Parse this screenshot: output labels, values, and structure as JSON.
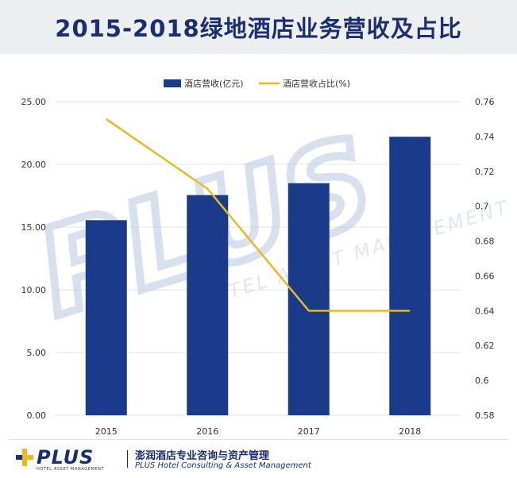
{
  "header": {
    "title": "2015-2018绿地酒店业务营收及占比"
  },
  "chart_data": {
    "type": "bar",
    "categories": [
      "2015",
      "2016",
      "2017",
      "2018"
    ],
    "series": [
      {
        "name": "酒店营收(亿元)",
        "type": "bar",
        "axis": "left",
        "color": "#1a3a8a",
        "values": [
          15.55,
          17.55,
          18.5,
          22.2
        ]
      },
      {
        "name": "酒店营收占比(%)",
        "type": "line",
        "axis": "right",
        "color": "#e8b923",
        "values": [
          0.75,
          0.71,
          0.64,
          0.64
        ]
      }
    ],
    "y_left": {
      "min": 0,
      "max": 25,
      "ticks": [
        "0.00",
        "5.00",
        "10.00",
        "15.00",
        "20.00",
        "25.00"
      ]
    },
    "y_right": {
      "min": 0.58,
      "max": 0.76,
      "ticks": [
        "0.58",
        "0.6",
        "0.62",
        "0.64",
        "0.66",
        "0.68",
        "0.7",
        "0.72",
        "0.74",
        "0.76"
      ]
    },
    "grid": true,
    "legend_position": "top-center"
  },
  "watermark": {
    "text": "PLUS",
    "subtext": "HOTEL ASSET MANAGEMENT"
  },
  "footer": {
    "brand": "PLUS",
    "brand_sub": "HOTEL ASSET MANAGEMENT",
    "cn_name": "澎润酒店专业咨询与资产管理",
    "en_name": "PLUS Hotel Consulting & Asset Management"
  },
  "colors": {
    "navy": "#1a2f73",
    "bar": "#1a3a8a",
    "line": "#e8b923",
    "grid": "#e3e3e3"
  }
}
